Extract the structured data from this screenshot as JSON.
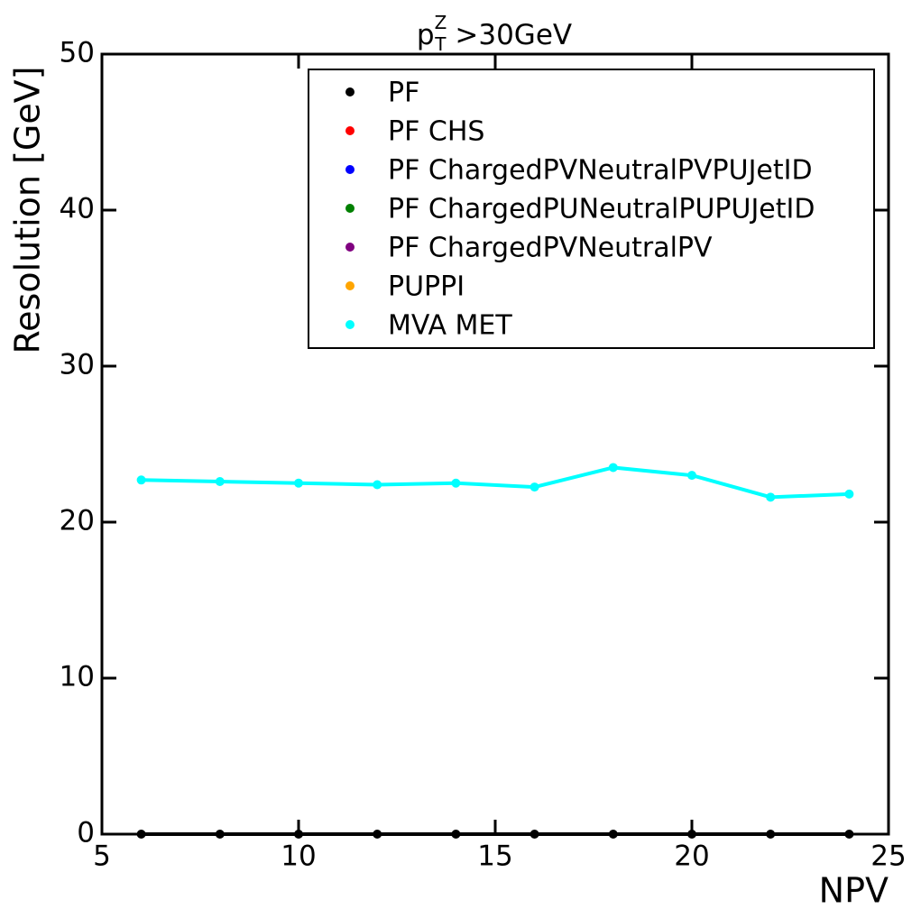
{
  "chart_data": {
    "type": "line",
    "title": {
      "base": "p",
      "sup": "Z",
      "sub": "T",
      "rest": " >30GeV"
    },
    "x_label": "NPV",
    "y_label": "Resolution [GeV]",
    "x": [
      6,
      8,
      10,
      12,
      14,
      16,
      18,
      20,
      22,
      24
    ],
    "series": [
      {
        "name": "PF",
        "color": "#000000",
        "values": [
          0,
          0,
          0,
          0,
          0,
          0,
          0,
          0,
          0,
          0
        ]
      },
      {
        "name": "PF CHS",
        "color": "#ff0000",
        "values": [
          null,
          null,
          null,
          null,
          null,
          null,
          null,
          null,
          null,
          null
        ]
      },
      {
        "name": "PF ChargedPVNeutralPVPUJetID",
        "color": "#0000ff",
        "values": [
          null,
          null,
          null,
          null,
          null,
          null,
          null,
          null,
          null,
          null
        ]
      },
      {
        "name": "PF ChargedPUNeutralPUPUJetID",
        "color": "#008000",
        "values": [
          null,
          null,
          null,
          null,
          null,
          null,
          null,
          null,
          null,
          null
        ]
      },
      {
        "name": "PF ChargedPVNeutralPV",
        "color": "#800080",
        "values": [
          null,
          null,
          null,
          null,
          null,
          null,
          null,
          null,
          null,
          null
        ]
      },
      {
        "name": "PUPPI",
        "color": "#ffa500",
        "values": [
          null,
          null,
          null,
          null,
          null,
          null,
          null,
          null,
          null,
          null
        ]
      },
      {
        "name": "MVA MET",
        "color": "#00ffff",
        "values": [
          22.7,
          22.6,
          22.5,
          22.4,
          22.5,
          22.25,
          23.5,
          23.0,
          21.6,
          21.8
        ]
      }
    ],
    "xlim": [
      5,
      25
    ],
    "ylim": [
      0,
      50
    ],
    "xticks": [
      5,
      10,
      15,
      20,
      25
    ],
    "yticks": [
      0,
      10,
      20,
      30,
      40,
      50
    ],
    "legend": "upper right"
  }
}
